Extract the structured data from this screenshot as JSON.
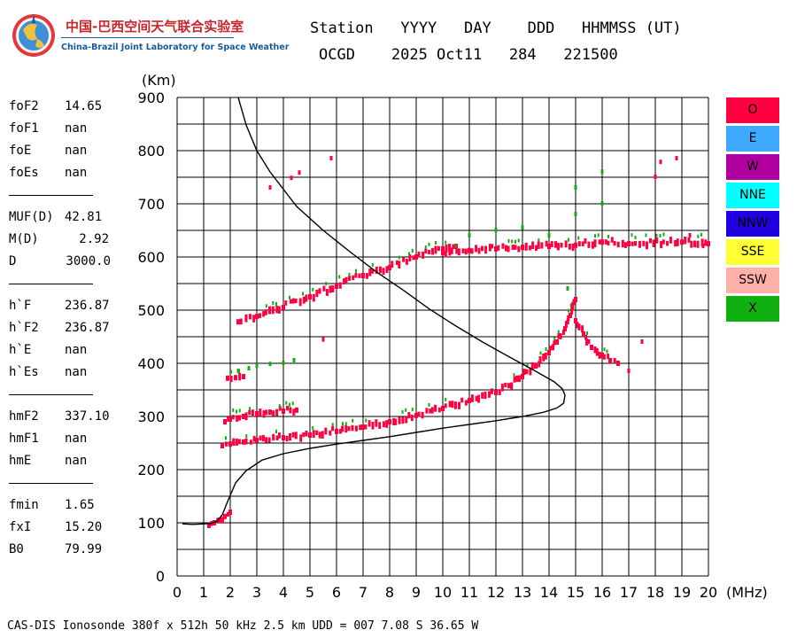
{
  "logo": {
    "cn": "中国-巴西空间天气联合实验室",
    "en": "China-Brazil Joint Laboratory for Space Weather",
    "icon": "globe-logo-icon"
  },
  "header": {
    "line1": "Station   YYYY   DAY    DDD   HHMMSS (UT)",
    "line2": "OCGD    2025 Oct11   284   221500"
  },
  "params": {
    "group1": [
      {
        "label": "foF2",
        "value": "14.65"
      },
      {
        "label": "foF1",
        "value": "nan"
      },
      {
        "label": "foE",
        "value": "nan"
      },
      {
        "label": "foEs",
        "value": "nan"
      }
    ],
    "group2": [
      {
        "label": "MUF(D)",
        "value": "42.81"
      },
      {
        "label": "M(D)",
        "value": "2.92"
      },
      {
        "label": "D",
        "value": "3000.0"
      }
    ],
    "group3": [
      {
        "label": "h`F",
        "value": "236.87"
      },
      {
        "label": "h`F2",
        "value": "236.87"
      },
      {
        "label": "h`E",
        "value": "nan"
      },
      {
        "label": "h`Es",
        "value": "nan"
      }
    ],
    "group4": [
      {
        "label": "hmF2",
        "value": "337.10"
      },
      {
        "label": "hmF1",
        "value": "nan"
      },
      {
        "label": "hmE",
        "value": "nan"
      }
    ],
    "group5": [
      {
        "label": "fmin",
        "value": "1.65"
      },
      {
        "label": "fxI",
        "value": "15.20"
      },
      {
        "label": "B0",
        "value": "79.99"
      }
    ]
  },
  "legend": [
    {
      "label": "O",
      "color": "#ff0040"
    },
    {
      "label": "E",
      "color": "#3fa9ff"
    },
    {
      "label": "W",
      "color": "#b000a0"
    },
    {
      "label": "NNE",
      "color": "#00ffff"
    },
    {
      "label": "NNW",
      "color": "#2000e0"
    },
    {
      "label": "SSE",
      "color": "#ffff33"
    },
    {
      "label": "SSW",
      "color": "#ffb0a8"
    },
    {
      "label": "X",
      "color": "#10b010"
    }
  ],
  "footer": "CAS-DIS Ionosonde 380f x 512h 50 kHz 2.5 km UDD = 007 7.08 S 36.65 W",
  "chart_data": {
    "type": "scatter",
    "title": "",
    "xlabel": "(MHz)",
    "ylabel": "(Km)",
    "xlim": [
      0,
      20
    ],
    "ylim": [
      0,
      900
    ],
    "xticks": [
      0,
      1,
      2,
      3,
      4,
      5,
      6,
      7,
      8,
      9,
      10,
      11,
      12,
      13,
      14,
      15,
      16,
      17,
      18,
      19,
      20
    ],
    "yticks": [
      0,
      100,
      200,
      300,
      400,
      500,
      600,
      700,
      800,
      900
    ],
    "grid": true,
    "series": [
      {
        "name": "O-trace F2 (1 hop)",
        "color": "#ff0040",
        "x": [
          1.7,
          2.0,
          2.5,
          3.0,
          4.0,
          5.0,
          6.0,
          7.0,
          8.0,
          9.0,
          10.0,
          11.0,
          12.0,
          12.5,
          13.0,
          13.5,
          14.0,
          14.3,
          14.6,
          14.8,
          15.0
        ],
        "y": [
          245,
          248,
          252,
          255,
          260,
          265,
          272,
          280,
          290,
          302,
          315,
          330,
          345,
          358,
          375,
          395,
          420,
          440,
          465,
          490,
          520
        ]
      },
      {
        "name": "O-trace 2nd hop",
        "color": "#ff0040",
        "x": [
          2.3,
          3.0,
          4.0,
          5.0,
          6.0,
          7.0,
          8.0,
          9.0,
          10.0,
          10.5
        ],
        "y": [
          478,
          488,
          505,
          525,
          545,
          565,
          580,
          600,
          615,
          620
        ]
      },
      {
        "name": "O-trace upper (spread)",
        "color": "#ff0040",
        "x": [
          10.0,
          11.0,
          12.0,
          13.0,
          14.0,
          15.0,
          16.0,
          17.0,
          19.0,
          20.0
        ],
        "y": [
          608,
          612,
          615,
          618,
          620,
          622,
          628,
          625,
          628,
          625
        ]
      },
      {
        "name": "O-trace low hops",
        "color": "#ff0040",
        "x": [
          1.8,
          2.0,
          2.5,
          3.0,
          3.5,
          4.0,
          4.5
        ],
        "y": [
          290,
          295,
          300,
          305,
          308,
          310,
          312
        ]
      },
      {
        "name": "O-trace E region",
        "color": "#ff0040",
        "x": [
          1.2,
          1.4,
          1.6,
          1.8,
          2.0
        ],
        "y": [
          95,
          100,
          105,
          112,
          120
        ]
      },
      {
        "name": "O-trace decay",
        "color": "#ff0040",
        "x": [
          15.0,
          15.3,
          15.6,
          16.0,
          16.3,
          16.6
        ],
        "y": [
          480,
          455,
          430,
          415,
          405,
          400
        ]
      },
      {
        "name": "O-trace 370 band",
        "color": "#ff0040",
        "x": [
          1.9,
          2.2,
          2.5
        ],
        "y": [
          372,
          373,
          375
        ]
      },
      {
        "name": "X-trace",
        "color": "#10b010",
        "x": [
          2.3,
          2.7,
          3.0,
          3.5,
          4.0,
          4.4,
          11.0,
          12.0,
          13.0,
          14.0,
          15.0,
          16.0,
          14.7,
          15.0,
          16.0
        ],
        "y": [
          385,
          390,
          395,
          398,
          400,
          405,
          640,
          650,
          655,
          640,
          680,
          700,
          540,
          730,
          760
        ]
      },
      {
        "name": "Sparse O outliers",
        "color": "#ff0040",
        "x": [
          3.5,
          4.3,
          4.6,
          5.5,
          5.8,
          17.0,
          17.5,
          18.0,
          18.2,
          18.8,
          19.3,
          19.8
        ],
        "y": [
          730,
          748,
          758,
          444,
          785,
          385,
          440,
          750,
          778,
          785,
          640,
          620
        ]
      },
      {
        "name": "Model profile",
        "color": "#000000",
        "x": [
          0.2,
          0.6,
          1.0,
          1.3,
          1.5,
          1.7,
          1.9,
          2.2,
          2.6,
          3.2,
          4.0,
          5.0,
          6.0,
          7.0,
          8.0,
          9.0,
          10.0,
          11.0,
          12.0,
          13.0,
          13.8,
          14.3,
          14.55,
          14.6,
          14.5,
          14.2,
          13.5,
          12.5,
          11.5,
          10.5,
          9.5,
          8.5,
          7.5,
          6.5,
          5.5,
          4.5,
          3.5,
          3.0,
          2.6,
          2.3
        ],
        "y": [
          98,
          97,
          98,
          99,
          103,
          115,
          140,
          175,
          198,
          218,
          230,
          240,
          248,
          255,
          262,
          270,
          278,
          285,
          292,
          300,
          308,
          316,
          325,
          340,
          352,
          365,
          385,
          412,
          440,
          470,
          502,
          538,
          572,
          610,
          650,
          695,
          760,
          800,
          848,
          900
        ]
      }
    ]
  }
}
